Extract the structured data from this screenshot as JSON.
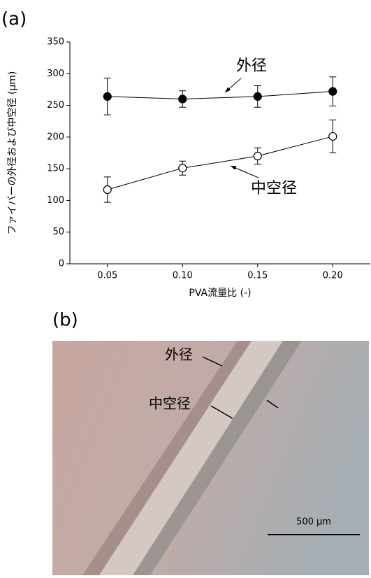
{
  "chart_data": {
    "type": "line",
    "xlabel": "PVA流量比 (-)",
    "ylabel": "ファイバーの外径および中空径 (μm)",
    "x": [
      0.05,
      0.1,
      0.15,
      0.2
    ],
    "series": [
      {
        "name": "外径",
        "color": "#000000",
        "fill": "#000000",
        "values": [
          264,
          260,
          264,
          272
        ],
        "errors": [
          29,
          13,
          17,
          23
        ]
      },
      {
        "name": "中空径",
        "color": "#000000",
        "fill": "#ffffff",
        "values": [
          117,
          151,
          170,
          201
        ],
        "errors": [
          20,
          11,
          13,
          26
        ]
      }
    ],
    "xlim": [
      0.025,
      0.225
    ],
    "xticks": [
      0.05,
      {
        "value": 0.1,
        "label": "0.10"
      },
      0.15,
      {
        "value": 0.2,
        "label": "0.20"
      }
    ],
    "ylim": [
      0,
      350
    ],
    "yticks": [
      0,
      50,
      100,
      150,
      200,
      250,
      300,
      350
    ],
    "grid": false
  },
  "figure": {
    "panel_labels": [
      "(a)",
      "(b)"
    ],
    "micrograph": {
      "labels": [
        "外径",
        "中空径"
      ],
      "scale_bar": "500 μm"
    }
  }
}
